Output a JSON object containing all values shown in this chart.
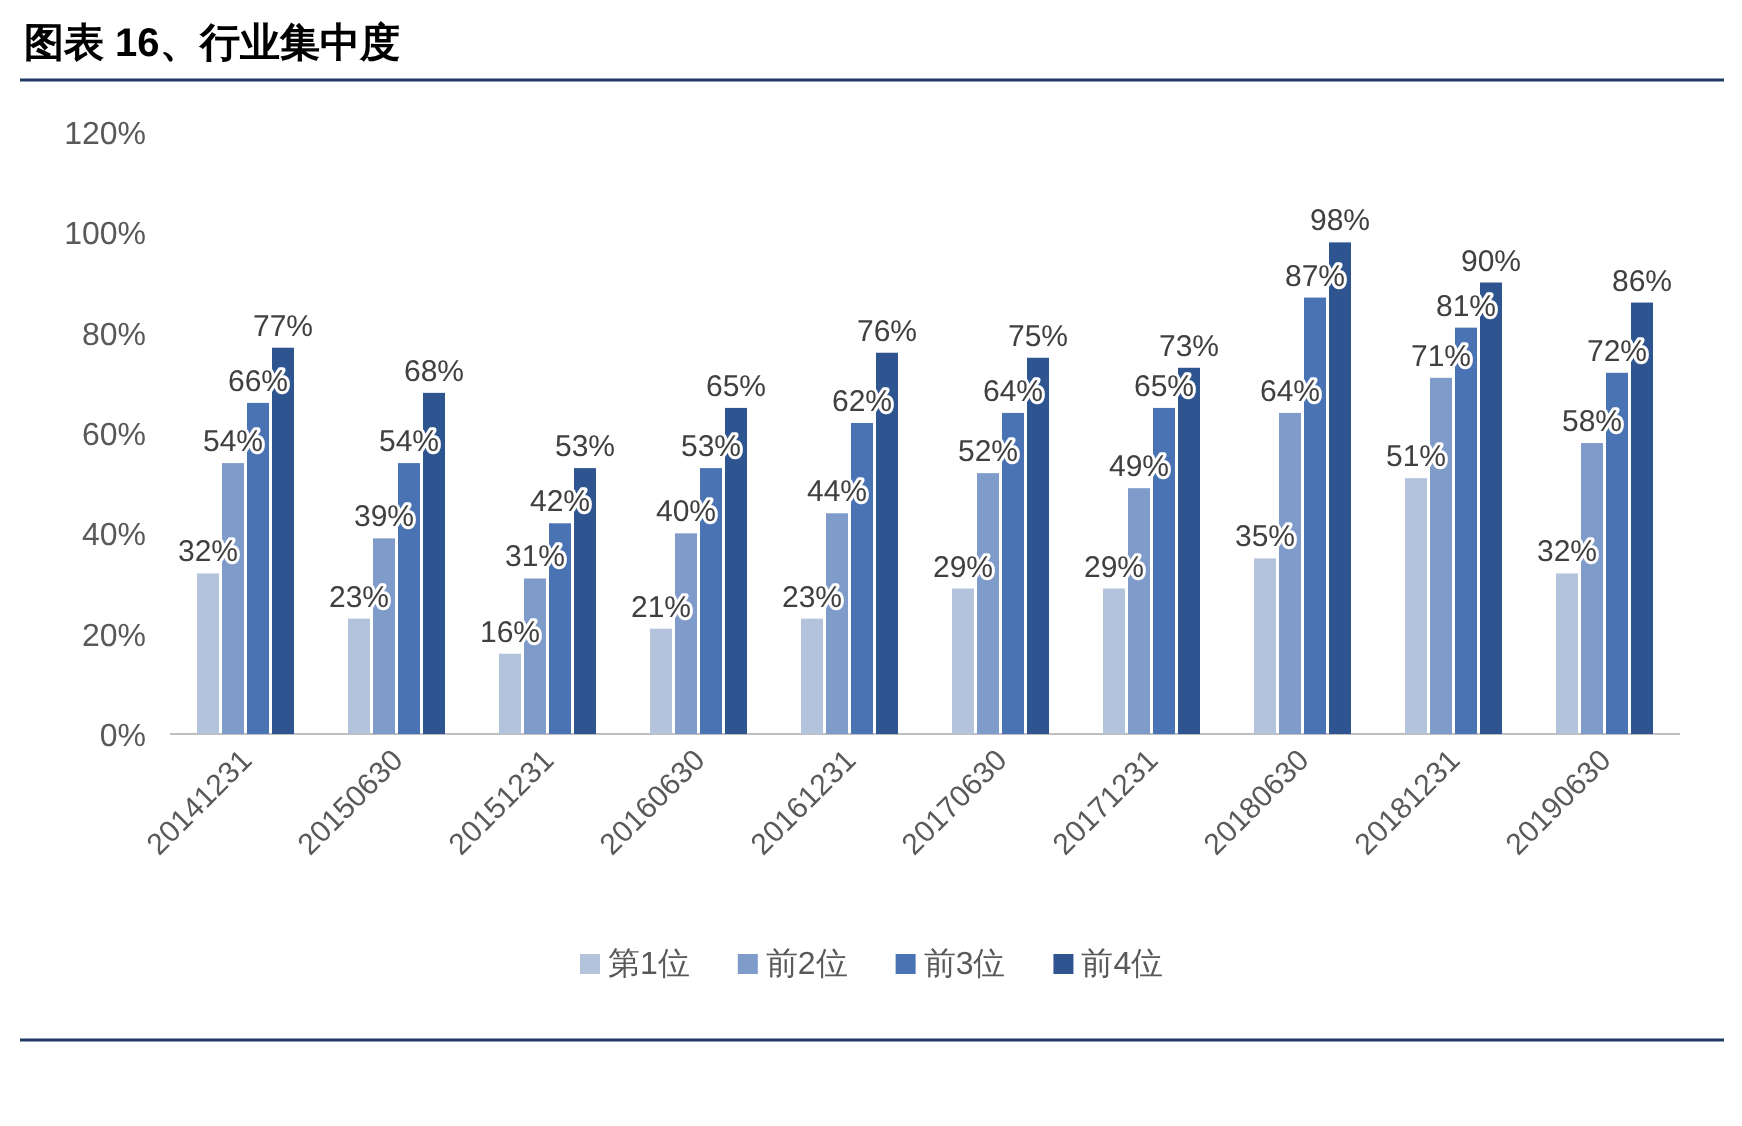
{
  "chart_data": {
    "type": "bar",
    "title": "图表 16、行业集中度",
    "categories": [
      "20141231",
      "20150630",
      "20151231",
      "20160630",
      "20161231",
      "20170630",
      "20171231",
      "20180630",
      "20181231",
      "20190630"
    ],
    "series": [
      {
        "name": "第1位",
        "color": "#b4c3dc",
        "values": [
          32,
          23,
          16,
          21,
          23,
          29,
          29,
          35,
          51,
          32
        ],
        "value_labels": [
          "32%",
          "23%",
          "16%",
          "21%",
          "23%",
          "29%",
          "29%",
          "35%",
          "51%",
          "32%"
        ]
      },
      {
        "name": "前2位",
        "color": "#7f9bc9",
        "values": [
          54,
          39,
          31,
          40,
          44,
          52,
          49,
          64,
          71,
          58
        ],
        "value_labels": [
          "54%",
          "39%",
          "31%",
          "40%",
          "44%",
          "52%",
          "49%",
          "64%",
          "71%",
          "58%"
        ]
      },
      {
        "name": "前3位",
        "color": "#4a73b4",
        "values": [
          66,
          54,
          42,
          53,
          62,
          64,
          65,
          87,
          81,
          72
        ],
        "value_labels": [
          "66%",
          "54%",
          "42%",
          "53%",
          "62%",
          "64%",
          "65%",
          "87%",
          "81%",
          "72%"
        ]
      },
      {
        "name": "前4位",
        "color": "#2f5590",
        "values": [
          77,
          68,
          53,
          65,
          76,
          75,
          73,
          98,
          90,
          86
        ],
        "value_labels": [
          "77%",
          "68%",
          "53%",
          "65%",
          "76%",
          "75%",
          "73%",
          "98%",
          "90%",
          "86%"
        ]
      }
    ],
    "ylim": [
      0,
      120
    ],
    "yticks": [
      {
        "value": 0,
        "label": "0%"
      },
      {
        "value": 20,
        "label": "20%"
      },
      {
        "value": 40,
        "label": "40%"
      },
      {
        "value": 60,
        "label": "60%"
      },
      {
        "value": 80,
        "label": "80%"
      },
      {
        "value": 100,
        "label": "100%"
      },
      {
        "value": 120,
        "label": "120%"
      }
    ],
    "grid": false,
    "legend": "bottom"
  }
}
